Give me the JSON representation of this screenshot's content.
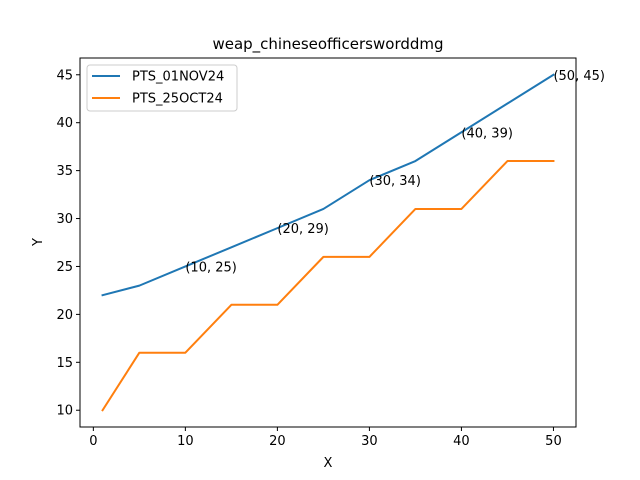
{
  "chart_data": {
    "type": "line",
    "title": "weap_chineseofficersworddmg",
    "xlabel": "X",
    "ylabel": "Y",
    "xlim": [
      -1.45,
      52.45
    ],
    "ylim": [
      8.25,
      46.75
    ],
    "xticks": [
      0,
      10,
      20,
      30,
      40,
      50
    ],
    "yticks": [
      10,
      15,
      20,
      25,
      30,
      35,
      40,
      45
    ],
    "legend_position": "top-left",
    "series": [
      {
        "name": "PTS_01NOV24",
        "color": "#1f77b4",
        "x": [
          1,
          5,
          10,
          15,
          20,
          25,
          30,
          35,
          40,
          45,
          50
        ],
        "y": [
          22,
          23,
          25,
          27,
          29,
          31,
          34,
          36,
          39,
          42,
          45
        ]
      },
      {
        "name": "PTS_25OCT24",
        "color": "#ff7f0e",
        "x": [
          1,
          5,
          10,
          15,
          20,
          25,
          30,
          35,
          40,
          45,
          50
        ],
        "y": [
          10,
          16,
          16,
          21,
          21,
          26,
          26,
          31,
          31,
          36,
          36
        ]
      }
    ],
    "annotations": [
      {
        "x": 10,
        "y": 25,
        "text": "(10, 25)"
      },
      {
        "x": 20,
        "y": 29,
        "text": "(20, 29)"
      },
      {
        "x": 30,
        "y": 34,
        "text": "(30, 34)"
      },
      {
        "x": 40,
        "y": 39,
        "text": "(40, 39)"
      },
      {
        "x": 50,
        "y": 45,
        "text": "(50, 45)"
      }
    ]
  }
}
